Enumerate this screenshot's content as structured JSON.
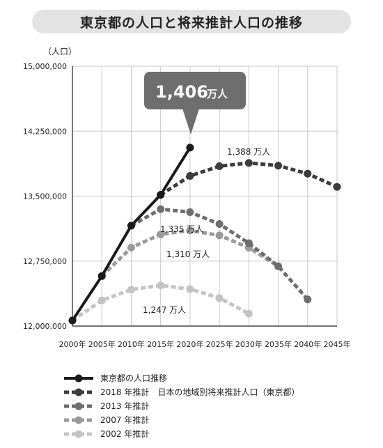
{
  "page_title": "東京都の人口と将来推計人口の推移",
  "y_unit": "（人口）",
  "callout": {
    "value": "1,406",
    "unit": "万人"
  },
  "annotations": [
    "1,388 万人",
    "1,335 万人",
    "1,310 万人",
    "1,247 万人"
  ],
  "legend": [
    {
      "label": "東京都の人口推移",
      "color": "#1a1a1a",
      "dashed": false
    },
    {
      "label": "2018 年推計　日本の地域別将来推計人口（東京都）",
      "color": "#3c3c3c",
      "dashed": true
    },
    {
      "label": "2013 年推計",
      "color": "#6e6e6e",
      "dashed": true
    },
    {
      "label": "2007 年推計",
      "color": "#9a9a9a",
      "dashed": true
    },
    {
      "label": "2002 年推計",
      "color": "#c4c4c4",
      "dashed": true
    }
  ],
  "chart_data": {
    "type": "line",
    "title": "東京都の人口と将来推計人口の推移",
    "ylabel": "（人口）",
    "xlabel": "",
    "x_ticks": [
      "2000年",
      "2005年",
      "2010年",
      "2015年",
      "2020年",
      "2025年",
      "2030年",
      "2035年",
      "2040年",
      "2045年"
    ],
    "y_ticks": [
      "12,000,000",
      "12,750,000",
      "13,500,000",
      "14,250,000",
      "15,000,000"
    ],
    "ylim": [
      12000000,
      15000000
    ],
    "xlim": [
      2000,
      2045
    ],
    "grid": true,
    "legend_position": "bottom",
    "series": [
      {
        "name": "東京都の人口推移",
        "x": [
          2000,
          2005,
          2010,
          2015,
          2020
        ],
        "y": [
          12064000,
          12577000,
          13159000,
          13515000,
          14060000
        ]
      },
      {
        "name": "2018 年推計　日本の地域別将来推計人口（東京都）",
        "x": [
          2015,
          2020,
          2025,
          2030,
          2035,
          2040,
          2045
        ],
        "y": [
          13515000,
          13733000,
          13846000,
          13883000,
          13852000,
          13759000,
          13607000
        ]
      },
      {
        "name": "2013 年推計",
        "x": [
          2010,
          2015,
          2020,
          2025,
          2030,
          2035,
          2040
        ],
        "y": [
          13159000,
          13350000,
          13315000,
          13178000,
          12957000,
          12691000,
          12308000
        ]
      },
      {
        "name": "2007 年推計",
        "x": [
          2005,
          2010,
          2015,
          2020,
          2025,
          2030,
          2035
        ],
        "y": [
          12577000,
          12906000,
          13059000,
          13104000,
          13047000,
          12905000,
          12690000
        ]
      },
      {
        "name": "2002 年推計",
        "x": [
          2000,
          2005,
          2010,
          2015,
          2020,
          2025,
          2030
        ],
        "y": [
          12064000,
          12297000,
          12421000,
          12470000,
          12427000,
          12324000,
          12144000
        ]
      }
    ]
  }
}
